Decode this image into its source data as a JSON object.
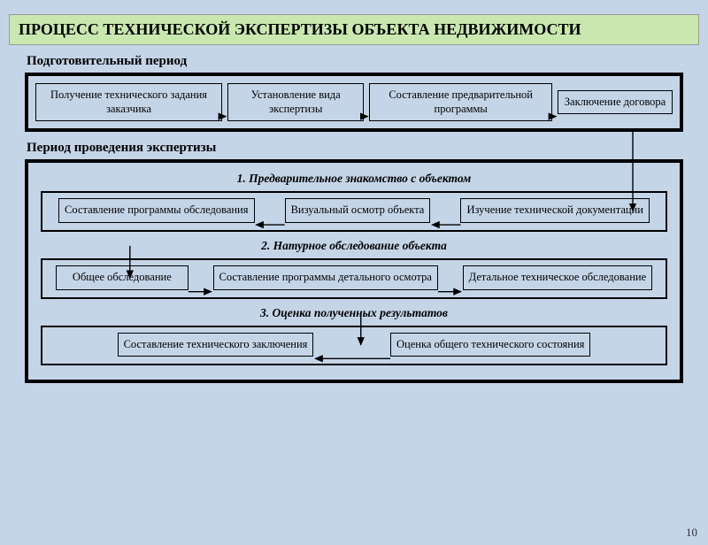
{
  "title": "ПРОЦЕСС ТЕХНИЧЕСКОЙ ЭКСПЕРТИЗЫ ОБЪЕКТА НЕДВИЖИМОСТИ",
  "page_number": "10",
  "colors": {
    "background": "#c5d5e8",
    "title_bg": "#c8e8b0",
    "border": "#000000",
    "text": "#000000"
  },
  "prep": {
    "label": "Подготовительный период",
    "boxes": {
      "b1": "Получение технического задания заказчика",
      "b2": "Установление вида экспертизы",
      "b3": "Составление предварительной программы",
      "b4": "Заключение договора"
    }
  },
  "exam": {
    "label": "Период проведения экспертизы",
    "stage1": {
      "title": "1. Предварительное знакомство с объектом",
      "b1": "Составление программы обследования",
      "b2": "Визуальный осмотр объекта",
      "b3": "Изучение технической документации"
    },
    "stage2": {
      "title": "2. Натурное обследование объекта",
      "b1": "Общее обследование",
      "b2": "Составление программы детального осмотра",
      "b3": "Детальное техническое обследование"
    },
    "stage3": {
      "title": "3. Оценка полученных результатов",
      "b1": "Составление технического заключения",
      "b2": "Оценка общего технического состояния"
    }
  },
  "diagram": {
    "type": "flowchart",
    "arrow_color": "#000000",
    "arrow_width": 1.2,
    "arrowhead_size": 6,
    "box_border_width": 1,
    "phase_border_width": 4,
    "sub_border_width": 2,
    "font_family": "Times New Roman",
    "box_fontsize": 12.5,
    "title_fontsize": 18,
    "subtitle_fontsize": 13.5
  }
}
